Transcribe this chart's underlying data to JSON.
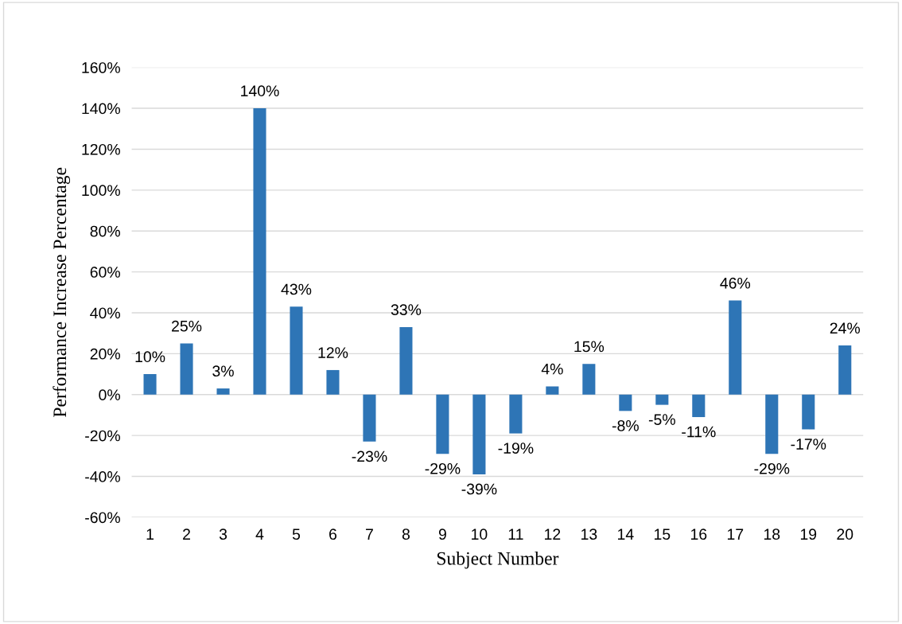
{
  "chart_data": {
    "type": "bar",
    "xlabel": "Subject Number",
    "ylabel": "Performance Increase Percentage",
    "categories": [
      "1",
      "2",
      "3",
      "4",
      "5",
      "6",
      "7",
      "8",
      "9",
      "10",
      "11",
      "12",
      "13",
      "14",
      "15",
      "16",
      "17",
      "18",
      "19",
      "20"
    ],
    "values": [
      10,
      25,
      3,
      140,
      43,
      12,
      -23,
      33,
      -29,
      -39,
      -19,
      4,
      15,
      -8,
      -5,
      -11,
      46,
      -29,
      -17,
      24
    ],
    "value_labels": [
      "10%",
      "25%",
      "3%",
      "140%",
      "43%",
      "12%",
      "-23%",
      "33%",
      "-29%",
      "-39%",
      "-19%",
      "4%",
      "15%",
      "-8%",
      "-5%",
      "-11%",
      "46%",
      "-29%",
      "-17%",
      "24%"
    ],
    "color": "#2e75b6",
    "ylim": [
      -60,
      160
    ],
    "yticks": [
      {
        "value": -60,
        "label": "-60%"
      },
      {
        "value": -40,
        "label": "-40%"
      },
      {
        "value": -20,
        "label": "-20%"
      },
      {
        "value": 0,
        "label": "0%"
      },
      {
        "value": 20,
        "label": "20%"
      },
      {
        "value": 40,
        "label": "40%"
      },
      {
        "value": 60,
        "label": "60%"
      },
      {
        "value": 80,
        "label": "80%"
      },
      {
        "value": 100,
        "label": "100%"
      },
      {
        "value": 120,
        "label": "120%"
      },
      {
        "value": 140,
        "label": "140%"
      },
      {
        "value": 160,
        "label": "160%"
      }
    ],
    "grid": "y"
  }
}
